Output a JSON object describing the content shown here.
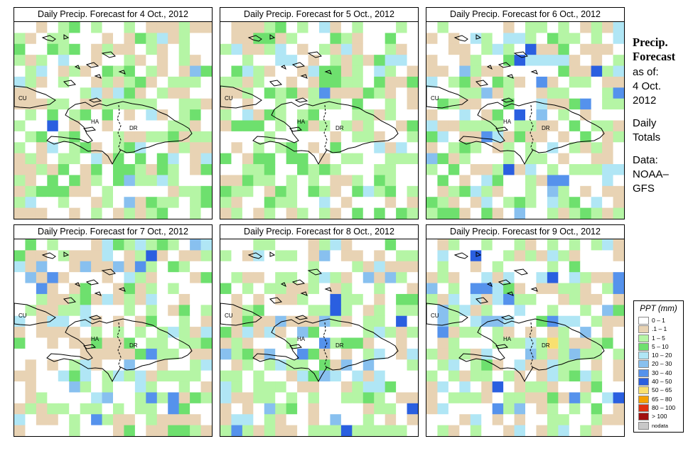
{
  "panels": [
    {
      "title": "Daily Precip. Forecast for  4 Oct., 2012",
      "seed": 11,
      "wet": 0.05
    },
    {
      "title": "Daily Precip. Forecast for  5 Oct., 2012",
      "seed": 23,
      "wet": 0.03
    },
    {
      "title": "Daily Precip. Forecast for  6 Oct., 2012",
      "seed": 37,
      "wet": 0.18
    },
    {
      "title": "Daily Precip. Forecast for  7 Oct., 2012",
      "seed": 41,
      "wet": 0.2
    },
    {
      "title": "Daily Precip. Forecast for  8 Oct., 2012",
      "seed": 53,
      "wet": 0.22
    },
    {
      "title": "Daily Precip. Forecast for  9 Oct., 2012",
      "seed": 67,
      "wet": 0.25
    }
  ],
  "map_labels": {
    "cuba": "CU",
    "haiti": "HA",
    "dr": "DR"
  },
  "info": {
    "title_line1": "Precip.",
    "title_line2": "Forecast",
    "asof_label": "as of:",
    "date_line1": "4 Oct.",
    "date_line2": "2012",
    "totals_line1": "Daily",
    "totals_line2": "Totals",
    "data_line1": "Data:",
    "data_line2": "NOAA–",
    "data_line3": "GFS"
  },
  "legend": {
    "title": "PPT (mm)",
    "items": [
      {
        "label": "0 – 1",
        "color": "#ffffff"
      },
      {
        "label": ".1 – 1",
        "color": "#e8d3b4"
      },
      {
        "label": "1 – 5",
        "color": "#b5f5a5"
      },
      {
        "label": "5 – 10",
        "color": "#6ee06e"
      },
      {
        "label": "10 – 20",
        "color": "#b0e6f5"
      },
      {
        "label": "20 – 30",
        "color": "#88c0ef"
      },
      {
        "label": "30 – 40",
        "color": "#5592ec"
      },
      {
        "label": "40 – 50",
        "color": "#2a5fe0"
      },
      {
        "label": "50 – 65",
        "color": "#f8e070"
      },
      {
        "label": "65 – 80",
        "color": "#f5a000"
      },
      {
        "label": "80 – 100",
        "color": "#e03010"
      },
      {
        "label": "> 100",
        "color": "#a01010"
      },
      {
        "label": "nodata",
        "color": "#c8c8c8"
      }
    ]
  }
}
